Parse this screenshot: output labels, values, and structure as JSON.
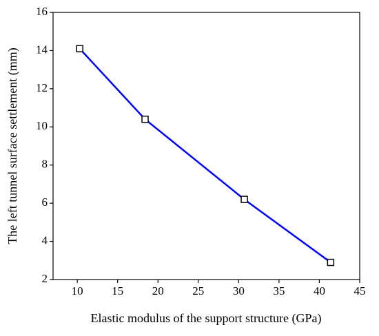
{
  "chart_data": {
    "type": "line",
    "x_label": "Elastic modulus of the support structure (GPa)",
    "y_label": "The left tunnel surface settlement (mm)",
    "x": [
      10.3,
      18.4,
      30.7,
      41.4
    ],
    "series": [
      {
        "color": "#0000ff",
        "marker_color": "#000000",
        "values": [
          14.1,
          10.4,
          6.2,
          2.9
        ]
      }
    ],
    "xlim": [
      7,
      45
    ],
    "xticks": [
      10,
      15,
      20,
      25,
      30,
      35,
      40,
      45
    ],
    "ylim": [
      2,
      16
    ],
    "yticks": [
      2,
      4,
      6,
      8,
      10,
      12,
      14,
      16
    ]
  }
}
